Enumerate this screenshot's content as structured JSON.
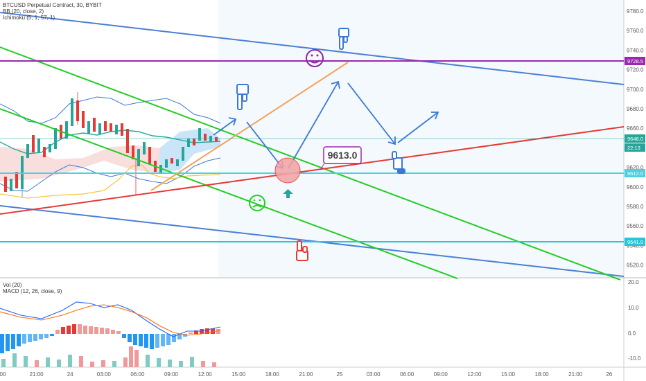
{
  "header": {
    "symbol": "BTCUSD Perpetual Contract, 30, BYBIT",
    "bb": "BB (20, close, 2)",
    "ichimoku": "Ichimoku (5, 1, 57, 1)"
  },
  "lower_legend": {
    "vol": "Vol (20)",
    "macd": "MACD (12, 26, close, 9)"
  },
  "price_axis": {
    "ticks": [
      "9780.0",
      "9760.0",
      "9740.0",
      "9720.0",
      "9700.0",
      "9680.0",
      "9660.0",
      "9640.0",
      "9620.0",
      "9600.0",
      "9580.0",
      "9560.0",
      "9540.0",
      "9520.0"
    ],
    "tags": [
      {
        "label": "9728.5",
        "color": "#9c27b0"
      },
      {
        "label": "9648.0",
        "color": "#26a69a"
      },
      {
        "label": "22:13",
        "color": "#26a69a"
      },
      {
        "label": "9612.0",
        "color": "#4dd0e1"
      },
      {
        "label": "9541.0",
        "color": "#26c6da"
      }
    ]
  },
  "macd_axis": {
    "ticks": [
      "20.0",
      "10.0",
      "0.0",
      "-10.0"
    ]
  },
  "time_axis": {
    "ticks": [
      "00",
      "21:00",
      "24",
      "03:00",
      "06:00",
      "09:00",
      "12:00",
      "15:00",
      "18:00",
      "21:00",
      "25",
      "03:00",
      "06:00",
      "09:00",
      "12:00",
      "15:00",
      "18:00",
      "21:00",
      "26"
    ]
  },
  "annotation": {
    "callout": "9613.0"
  },
  "colors": {
    "blue_channel": "#4a7fd4",
    "green_channel": "#22cc22",
    "red_trend": "#e53935",
    "purple_level": "#9c27b0",
    "cyan_level": "#4dd0e1",
    "orange_trend": "#f5a05a",
    "arrow": "#3a78d8"
  },
  "icons": [
    "happy-face-icon",
    "sad-face-icon",
    "pointing-down-hand-icon",
    "pointing-down-hand-red-icon",
    "thumbs-down-icon",
    "up-arrow-icon"
  ]
}
